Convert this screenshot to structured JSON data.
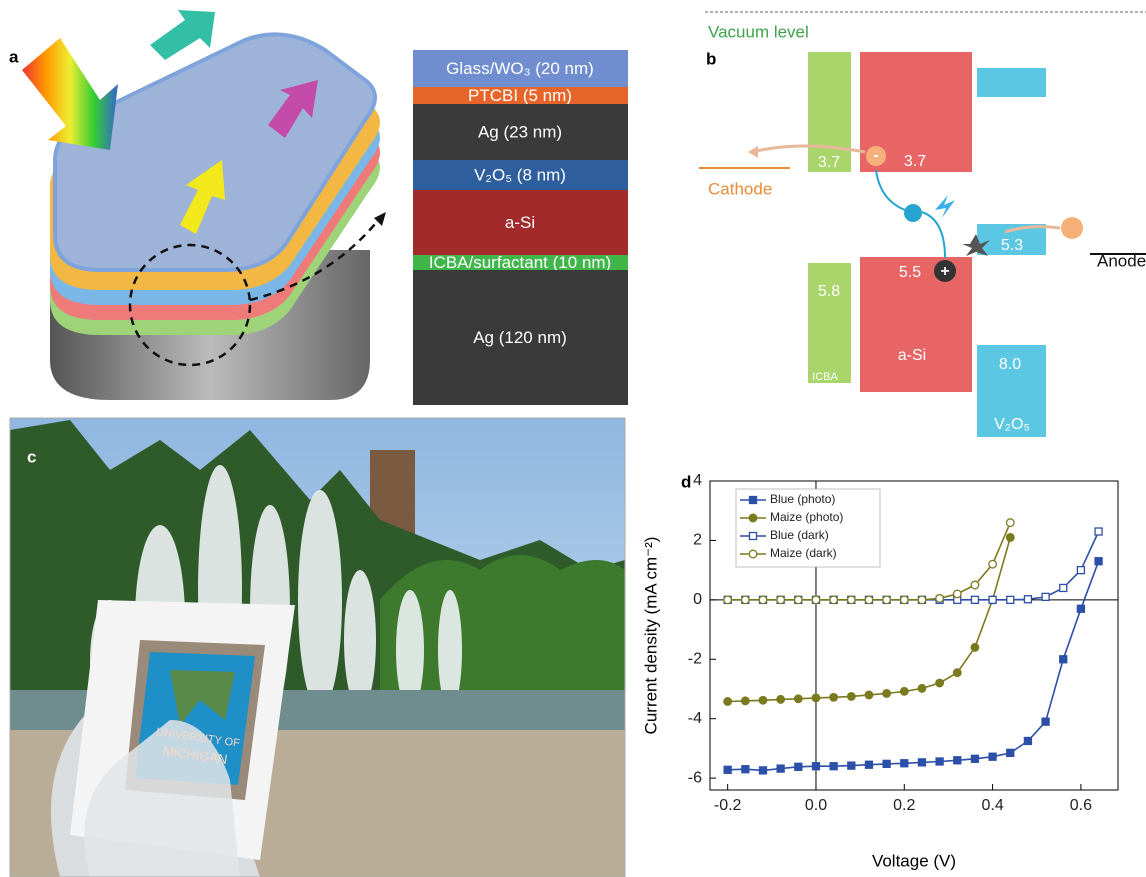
{
  "panel_a": {
    "label": "a",
    "layers": [
      {
        "text": "Glass/WO₃ (20 nm)",
        "color": "#6f8dcf"
      },
      {
        "text": "PTCBI (5 nm)",
        "color": "#e8652a"
      },
      {
        "text": "Ag (23 nm)",
        "color": "#3a3a3a"
      },
      {
        "text": "V₂O₅ (8 nm)",
        "color": "#2f5e9e"
      },
      {
        "text": "a-Si",
        "color": "#a32a2a"
      },
      {
        "text": "ICBA/surfactant (10 nm)",
        "color": "#3fb54a"
      },
      {
        "text": "Ag (120 nm)",
        "color": "#3a3a3a"
      }
    ]
  },
  "panel_b": {
    "label": "b",
    "vacuum_level": "Vacuum level",
    "cathode": "Cathode",
    "anode": "Anode",
    "levels": [
      "3.7",
      "3.7",
      "5.5",
      "5.3",
      "5.8",
      "8.0"
    ],
    "materials": [
      "ICBA",
      "a-Si",
      "V₂O₅"
    ],
    "electron": "-",
    "hole": "+"
  },
  "panel_c": {
    "label": "c",
    "card_text": [
      "UNIVERSITY OF",
      "MICHIGAN"
    ]
  },
  "chart_data": {
    "type": "line",
    "label": "d",
    "x_label": "Voltage (V)",
    "y_label": "Current density (mA cm⁻²)",
    "x": [
      -0.2,
      -0.16,
      -0.12,
      -0.08,
      -0.04,
      0,
      0.04,
      0.08,
      0.12,
      0.16,
      0.2,
      0.24,
      0.28,
      0.32,
      0.36,
      0.4,
      0.44,
      0.48,
      0.52,
      0.56,
      0.6,
      0.64
    ],
    "xlim": [
      -0.24,
      0.684
    ],
    "ylim": [
      -6.4,
      4
    ],
    "xticks": [
      -0.2,
      {
        "value": 0,
        "label": "0.0"
      },
      0.2,
      0.4,
      0.6
    ],
    "yticks": [
      -6,
      -4,
      -2,
      0,
      2,
      4
    ],
    "zero_lines": true,
    "legend": "upper left",
    "series": [
      {
        "name": "Blue (photo)",
        "color": "#2c4fa8",
        "marker": "square",
        "filled": true,
        "values": [
          -5.72,
          -5.7,
          -5.74,
          -5.68,
          -5.62,
          -5.6,
          -5.6,
          -5.58,
          -5.55,
          -5.52,
          -5.5,
          -5.47,
          -5.44,
          -5.4,
          -5.35,
          -5.28,
          -5.15,
          -4.75,
          -4.1,
          -2.0,
          -0.3,
          1.3
        ]
      },
      {
        "name": "Maize (photo)",
        "color": "#7c7a1e",
        "marker": "circle",
        "filled": true,
        "values": [
          -3.42,
          -3.4,
          -3.38,
          -3.35,
          -3.33,
          -3.3,
          -3.28,
          -3.25,
          -3.2,
          -3.15,
          -3.08,
          -2.98,
          -2.8,
          -2.45,
          -1.6,
          0.0,
          2.1,
          null,
          null,
          null,
          null,
          null
        ]
      },
      {
        "name": "Blue (dark)",
        "color": "#2c4fa8",
        "marker": "square",
        "filled": false,
        "values": [
          0,
          0,
          0,
          0,
          0,
          0,
          0,
          0,
          0,
          0,
          0,
          0,
          0,
          0,
          0,
          0,
          0,
          0.02,
          0.1,
          0.4,
          1.0,
          2.3
        ]
      },
      {
        "name": "Maize (dark)",
        "color": "#7c7a1e",
        "marker": "circle",
        "filled": false,
        "values": [
          0,
          0,
          0,
          0,
          0,
          0,
          0,
          0,
          0,
          0,
          0,
          0,
          0.05,
          0.2,
          0.5,
          1.2,
          2.6,
          null,
          null,
          null,
          null,
          null
        ]
      }
    ]
  }
}
